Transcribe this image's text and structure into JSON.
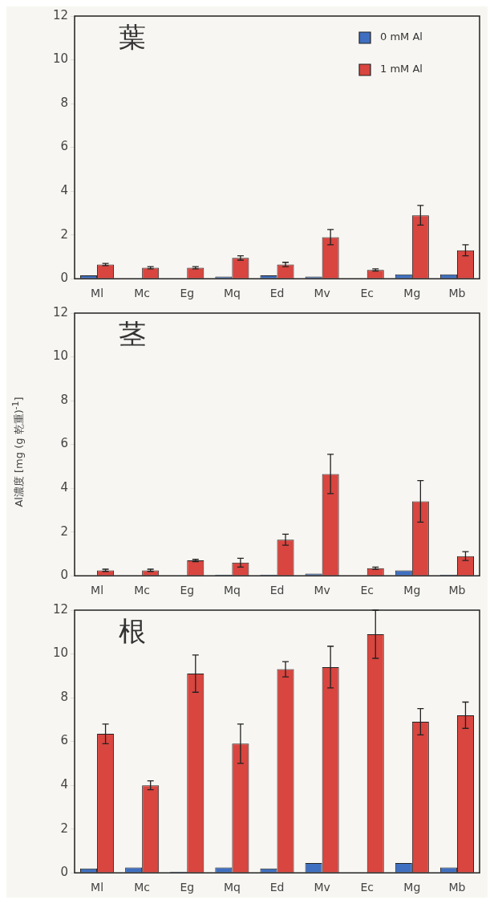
{
  "chart_data": [
    {
      "type": "bar",
      "annotations": [
        "葉"
      ],
      "categories": [
        "Ml",
        "Mc",
        "Eg",
        "Mq",
        "Ed",
        "Mv",
        "Ec",
        "Mg",
        "Mb"
      ],
      "ylim": [
        0,
        12
      ],
      "yticks": [
        0,
        2,
        4,
        6,
        8,
        10,
        12
      ],
      "grid": false,
      "legend": "top right",
      "series": [
        {
          "name": "0 mM Al",
          "color": "#3f6fc0",
          "values": [
            0.15,
            0.02,
            0.02,
            0.1,
            0.15,
            0.1,
            0.02,
            0.2,
            0.2
          ]
        },
        {
          "name": "1 mM Al",
          "color": "#d9453f",
          "values": [
            0.65,
            0.5,
            0.5,
            0.95,
            0.65,
            1.9,
            0.4,
            2.9,
            1.3
          ],
          "errors": [
            0.05,
            0.05,
            0.05,
            0.1,
            0.1,
            0.35,
            0.05,
            0.45,
            0.25
          ]
        }
      ]
    },
    {
      "type": "bar",
      "annotations": [
        "茎"
      ],
      "ylabel": "Al濃度 [mg (g 乾重)$^{-1}$]",
      "categories": [
        "Ml",
        "Mc",
        "Eg",
        "Mq",
        "Ed",
        "Mv",
        "Ec",
        "Mg",
        "Mb"
      ],
      "ylim": [
        0,
        12
      ],
      "yticks": [
        0,
        2,
        4,
        6,
        8,
        10,
        12
      ],
      "grid": false,
      "series": [
        {
          "color": "#3f6fc0",
          "values": [
            0.02,
            0.02,
            0.02,
            0.05,
            0.05,
            0.1,
            0.02,
            0.25,
            0.05
          ]
        },
        {
          "color": "#d9453f",
          "values": [
            0.25,
            0.25,
            0.7,
            0.6,
            1.65,
            4.65,
            0.35,
            3.4,
            0.9
          ],
          "errors": [
            0.05,
            0.05,
            0.05,
            0.2,
            0.25,
            0.9,
            0.05,
            0.95,
            0.2
          ]
        }
      ]
    },
    {
      "type": "bar",
      "annotations": [
        "根"
      ],
      "categories": [
        "Ml",
        "Mc",
        "Eg",
        "Mq",
        "Ed",
        "Mv",
        "Ec",
        "Mg",
        "Mb"
      ],
      "ylim": [
        0,
        12
      ],
      "yticks": [
        0,
        2,
        4,
        6,
        8,
        10,
        12
      ],
      "grid": false,
      "series": [
        {
          "color": "#3f6fc0",
          "values": [
            0.2,
            0.25,
            0.05,
            0.25,
            0.2,
            0.45,
            0.02,
            0.45,
            0.25
          ]
        },
        {
          "color": "#d9453f",
          "values": [
            6.35,
            4.0,
            9.1,
            5.9,
            9.3,
            9.4,
            10.9,
            6.9,
            7.2
          ],
          "errors": [
            0.45,
            0.2,
            0.85,
            0.9,
            0.35,
            0.95,
            1.1,
            0.6,
            0.6
          ]
        }
      ]
    }
  ]
}
